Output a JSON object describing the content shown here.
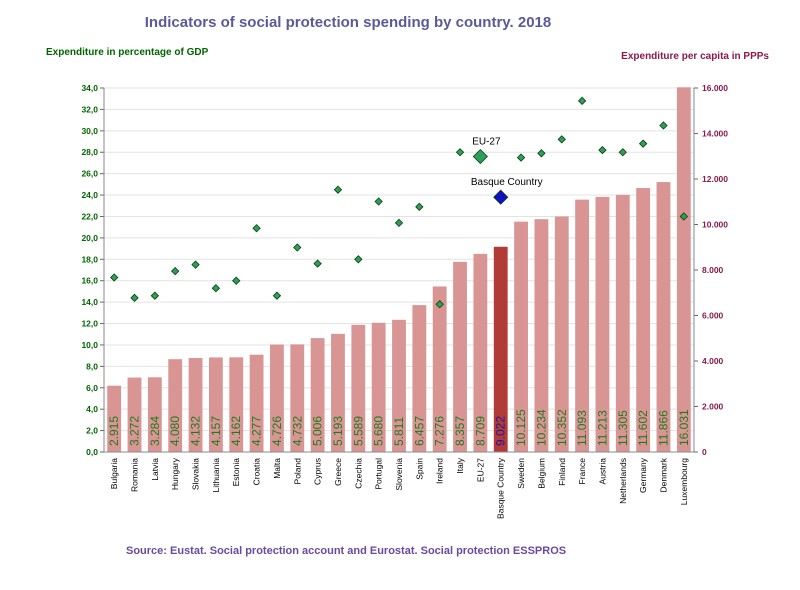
{
  "chart_data": {
    "type": "bar",
    "title": "Indicators of social protection spending by country. 2018",
    "ylabel_left": "Expenditure in percentage of GDP",
    "ylabel_right": "Expenditure per capita in PPPs",
    "source": "Source: Eustat. Social protection account and Eurostat. Social protection ESSPROS",
    "categories": [
      "Bulgaria",
      "Romania",
      "Latvia",
      "Hungary",
      "Slovakia",
      "Lithuania",
      "Estonia",
      "Croatia",
      "Malta",
      "Poland",
      "Cyprus",
      "Greece",
      "Czechia",
      "Portugal",
      "Slovenia",
      "Spain",
      "Ireland",
      "Italy",
      "EU-27",
      "Basque Country",
      "Sweden",
      "Belgium",
      "Finland",
      "France",
      "Austria",
      "Netherlands",
      "Germany",
      "Denmark",
      "Luxembourg"
    ],
    "series": [
      {
        "name": "Expenditure per capita in PPPs",
        "kind": "bar",
        "axis": "right",
        "values": [
          2915,
          3272,
          3284,
          4080,
          4132,
          4157,
          4162,
          4277,
          4726,
          4732,
          5006,
          5193,
          5589,
          5680,
          5811,
          6457,
          7276,
          8357,
          8709,
          9022,
          10125,
          10234,
          10352,
          11093,
          11213,
          11305,
          11602,
          11866,
          16031
        ],
        "labels": [
          "2.915",
          "3.272",
          "3.284",
          "4.080",
          "4.132",
          "4.157",
          "4.162",
          "4.277",
          "4.726",
          "4.732",
          "5.006",
          "5.193",
          "5.589",
          "5.680",
          "5.811",
          "6.457",
          "7.276",
          "8.357",
          "8.709",
          "9.022",
          "10.125",
          "10.234",
          "10.352",
          "11.093",
          "11.213",
          "11.305",
          "11.602",
          "11.866",
          "16.031"
        ]
      },
      {
        "name": "Expenditure in percentage of GDP",
        "kind": "scatter",
        "axis": "left",
        "values": [
          16.3,
          14.4,
          14.6,
          16.9,
          17.5,
          15.3,
          16.0,
          20.9,
          14.6,
          19.1,
          17.6,
          24.5,
          18.0,
          23.4,
          21.4,
          22.9,
          13.8,
          28.0,
          27.6,
          23.8,
          27.5,
          27.9,
          29.2,
          32.8,
          28.2,
          28.0,
          28.8,
          30.5,
          22.0
        ]
      }
    ],
    "ylim_left": [
      0,
      34
    ],
    "yticks_left": [
      "0,0",
      "2,0",
      "4,0",
      "6,0",
      "8,0",
      "10,0",
      "12,0",
      "14,0",
      "16,0",
      "18,0",
      "20,0",
      "22,0",
      "24,0",
      "26,0",
      "28,0",
      "30,0",
      "32,0",
      "34,0"
    ],
    "ylim_right": [
      0,
      16000
    ],
    "yticks_right": [
      "0",
      "2.000",
      "4.000",
      "6.000",
      "8.000",
      "10.000",
      "12.000",
      "14.000",
      "16.000"
    ],
    "highlight": [
      "EU-27",
      "Basque Country"
    ],
    "annotations": [
      {
        "category": "EU-27",
        "text": "EU-27"
      },
      {
        "category": "Basque Country",
        "text": "Basque Country"
      }
    ],
    "colors": {
      "bar": "#d99594",
      "bar_highlight": "#b23a37",
      "marker": "#2ca05a",
      "marker_highlight": "#1010c8",
      "label": "#1f7a1f",
      "label_highlight": "#1a1aa0",
      "title": "#5a5a9a",
      "left_axis": "#006600",
      "right_axis": "#8b1a4a",
      "source": "#6a4aa0"
    }
  }
}
